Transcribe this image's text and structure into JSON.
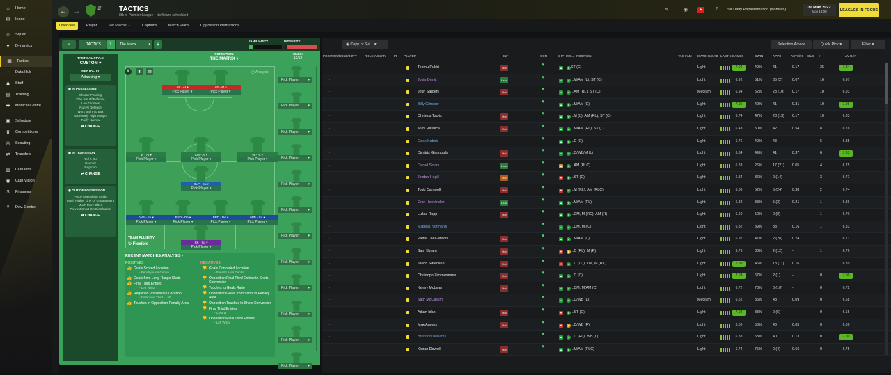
{
  "sidebar": {
    "items": [
      {
        "label": "Home",
        "icon": "home-icon",
        "glyph": "⌂"
      },
      {
        "label": "Inbox",
        "icon": "inbox-icon",
        "glyph": "✉"
      },
      {
        "label": "Squad",
        "icon": "squad-icon",
        "glyph": "☺"
      },
      {
        "label": "Dynamics",
        "icon": "dynamics-icon",
        "glyph": "♥"
      },
      {
        "label": "Tactics",
        "icon": "tactics-icon",
        "glyph": "▦",
        "active": true
      },
      {
        "label": "Data Hub",
        "icon": "data-hub-icon",
        "glyph": "◔"
      },
      {
        "label": "Staff",
        "icon": "staff-icon",
        "glyph": "♟"
      },
      {
        "label": "Training",
        "icon": "training-icon",
        "glyph": "▤"
      },
      {
        "label": "Medical Centre",
        "icon": "medical-icon",
        "glyph": "✚"
      },
      {
        "label": "Schedule",
        "icon": "schedule-icon",
        "glyph": "▣"
      },
      {
        "label": "Competitions",
        "icon": "trophy-icon",
        "glyph": "♛"
      },
      {
        "label": "Scouting",
        "icon": "scouting-icon",
        "glyph": "◎"
      },
      {
        "label": "Transfers",
        "icon": "transfers-icon",
        "glyph": "⇄"
      },
      {
        "label": "Club Info",
        "icon": "club-info-icon",
        "glyph": "▥"
      },
      {
        "label": "Club Vision",
        "icon": "club-vision-icon",
        "glyph": "◉"
      },
      {
        "label": "Finances",
        "icon": "finances-icon",
        "glyph": "$"
      },
      {
        "label": "Dev. Centre",
        "icon": "dev-centre-icon",
        "glyph": "⚘"
      }
    ]
  },
  "header": {
    "title": "TACTICS",
    "subtitle": "8th in Premier League - No fixture scheduled",
    "manager": "Sir Daffy Papastamatino (Norwich)",
    "date": "30 MAY 2022",
    "time": "Mon 12:00",
    "focus": "LEAGUES IN FOCUS"
  },
  "subtabs": [
    "Overview",
    "Player",
    "Set Pieces ⌄",
    "Captains",
    "Match Plans",
    "Opposition Instructions"
  ],
  "tactics": {
    "tab_label": "TACTICS",
    "tab_number": "1",
    "tactic_name": "The Matrix",
    "familiarity_label": "FAMILIARITY",
    "intensity_label": "INTENSITY",
    "style_label": "TACTICAL STYLE",
    "style_value": "CUSTOM",
    "mentality_label": "MENTALITY",
    "mentality_value": "Attacking",
    "in_possession_title": "IN POSSESSION",
    "in_possession": [
      "Shorter Passing",
      "Play Out Of Defence",
      "Low Crosses",
      "Run At Defence",
      "Work Ball Into Box",
      "Extremely High Tempo",
      "Fairly Narrow"
    ],
    "in_transition_title": "IN TRANSITION",
    "in_transition": [
      "Roll It Out",
      "Counter",
      "Regroup"
    ],
    "out_possession_title": "OUT OF POSSESSION",
    "out_possession": [
      "Force Opposition Inside",
      "Much Higher Line Of Engagement",
      "Much More Often",
      "Prevent Short GK Distribution"
    ],
    "change_label": "CHANGE",
    "formation_label": "FORMATION",
    "formation_value": "THE MATRIX",
    "analysis_label": "Analysis",
    "subs_label": "SUBS:",
    "subs_value": "12/12",
    "team_fluidity_label": "TEAM FLUIDITY",
    "team_fluidity_value": "Flexible"
  },
  "pitch_players": [
    {
      "role": "AF - At",
      "pick": "Pick Player"
    },
    {
      "role": "AF - At",
      "pick": "Pick Player"
    },
    {
      "role": "W - At",
      "pick": "Pick Player"
    },
    {
      "role": "CM - At",
      "pick": "Pick Player"
    },
    {
      "role": "W - At",
      "pick": "Pick Player"
    },
    {
      "role": "DLP - Su",
      "pick": "Pick Player"
    },
    {
      "role": "IWB - Su",
      "pick": "Pick Player"
    },
    {
      "role": "BPD - De",
      "pick": "Pick Player"
    },
    {
      "role": "BPD - De",
      "pick": "Pick Player"
    },
    {
      "role": "IWB - Su",
      "pick": "Pick Player"
    },
    {
      "role": "SK - Su",
      "pick": "Pick Player"
    }
  ],
  "subs_pick": "Pick Player",
  "recent": {
    "title": "RECENT MATCHES ANALYSIS ›",
    "positives_label": "POSITIVES",
    "negatives_label": "NEGATIVES",
    "positives": [
      {
        "text": "Goals Scored Location",
        "sub": "- Penalty Area Centre"
      },
      {
        "text": "Goals from Long-Range Shots",
        "sub": ""
      },
      {
        "text": "Final Third Entries",
        "sub": "- Left Wing"
      },
      {
        "text": "Regained Possession Location",
        "sub": "- Defensive Third - Left"
      },
      {
        "text": "Touches in Opposition Penalty Area",
        "sub": ""
      }
    ],
    "negatives": [
      {
        "text": "Goals Conceded Location",
        "sub": "- Penalty Area Centre"
      },
      {
        "text": "Opposition Final Third Entries to Shots Conversion",
        "sub": ""
      },
      {
        "text": "Touches to Goals Ratio",
        "sub": ""
      },
      {
        "text": "Opposition Goals from Shots in Penalty Area",
        "sub": ""
      },
      {
        "text": "Opposition Touches to Shots Conversion",
        "sub": ""
      },
      {
        "text": "Final Third Entries",
        "sub": "- Central"
      },
      {
        "text": "Opposition Final Third Entries",
        "sub": "- Left Wing"
      }
    ]
  },
  "squad_toolbar": {
    "view": "Copy of Sel...",
    "selection_advice": "Selection Advice",
    "quick_pick": "Quick Pick",
    "filter": "Filter"
  },
  "columns": [
    "POSITION/ROLE/DUTY",
    "ROLE ABILITY",
    "PI",
    "PLAYER",
    "INF",
    "CON",
    "SHP",
    "MO...",
    "POSITION",
    "TAC FAM",
    "MATCH LOAD",
    "LAST 5 GAMES",
    "GWIN",
    "APPS",
    "ASTS/90",
    "GLS",
    "▾",
    "AV RAT"
  ],
  "players": [
    {
      "name": "Teemu Pukki",
      "inf": "red",
      "shp": "up",
      "mo": "ok",
      "pos": "ST (C)",
      "load": "Light",
      "last5": "7.04",
      "gwin": "49%",
      "apps": "41",
      "asts": "0.17",
      "gls": "35",
      "avrat": "7.34",
      "color": "#e8e8e8"
    },
    {
      "name": "Josip Drmić",
      "inf": "green",
      "shp": "up",
      "mo": "ok",
      "pos": "...M/AM (L), ST (C)",
      "load": "Light",
      "last5": "6.92",
      "gwin": "51%",
      "apps": "35 (2)",
      "asts": "0.07",
      "gls": "16",
      "avrat": "6.97",
      "color": "#c690e0"
    },
    {
      "name": "Josh Sargent",
      "inf": "red",
      "shp": "up",
      "mo": "ok",
      "pos": "...AM (RL), ST (C)",
      "load": "Medium",
      "last5": "6.94",
      "gwin": "52%",
      "apps": "23 (10)",
      "asts": "0.17",
      "gls": "10",
      "avrat": "6.93",
      "color": "#e8e8e8"
    },
    {
      "name": "Billy Gilmour",
      "inf": "",
      "shp": "up",
      "mo": "ok",
      "pos": "...M/AM (C)",
      "load": "Light",
      "last5": "7.05",
      "gwin": "49%",
      "apps": "41",
      "asts": "0.31",
      "gls": "10",
      "avrat": "7.06",
      "color": "#6fa7e8"
    },
    {
      "name": "Christos Tzolis",
      "inf": "red",
      "shp": "up",
      "mo": "ok",
      "pos": "...M (L), AM (RL), ST (C)",
      "load": "Light",
      "last5": "6.74",
      "gwin": "47%",
      "apps": "23 (13)",
      "asts": "0.17",
      "gls": "10",
      "avrat": "6.83",
      "color": "#e8e8e8"
    },
    {
      "name": "Milot Rashica",
      "inf": "red",
      "shp": "up",
      "mo": "ok",
      "pos": "...M/AM (RL), ST (C)",
      "load": "Light",
      "last5": "6.48",
      "gwin": "50%",
      "apps": "42",
      "asts": "0.54",
      "gls": "8",
      "avrat": "6.76",
      "color": "#e8e8e8"
    },
    {
      "name": "Ozan Kabak",
      "inf": "",
      "shp": "up",
      "mo": "ok",
      "pos": "...D (C)",
      "load": "Light",
      "last5": "6.76",
      "gwin": "49%",
      "apps": "43",
      "asts": "-",
      "gls": "6",
      "avrat": "6.85",
      "color": "#6fa7e8"
    },
    {
      "name": "Dimitris Giannoulis",
      "inf": "red",
      "shp": "up",
      "mo": "ok",
      "pos": "...D/WB/M (L)",
      "load": "Light",
      "last5": "6.64",
      "gwin": "49%",
      "apps": "41",
      "asts": "0.37",
      "gls": "6",
      "avrat": "7.03",
      "color": "#e8e8e8"
    },
    {
      "name": "Daniel Sinani",
      "inf": "green",
      "shp": "mid",
      "mo": "ok",
      "pos": "...AM (RLC)",
      "load": "Light",
      "last5": "6.88",
      "gwin": "26%",
      "apps": "17 (21)",
      "asts": "0.05",
      "gls": "4",
      "avrat": "6.75",
      "color": "#c690e0"
    },
    {
      "name": "Jordan Hugill",
      "inf": "orange",
      "shp": "down",
      "mo": "ok",
      "pos": "...ST (C)",
      "load": "Light",
      "last5": "6.84",
      "gwin": "36%",
      "apps": "0 (14)",
      "asts": "-",
      "gls": "3",
      "avrat": "6.71",
      "color": "#c690e0"
    },
    {
      "name": "Todd Cantwell",
      "inf": "red",
      "shp": "down",
      "mo": "ok",
      "pos": "...M (RL), AM (RLC)",
      "load": "Light",
      "last5": "6.88",
      "gwin": "52%",
      "apps": "5 (24)",
      "asts": "0.38",
      "gls": "2",
      "avrat": "6.74",
      "color": "#e8e8e8"
    },
    {
      "name": "Onel Hernández",
      "inf": "green",
      "shp": "up",
      "mo": "ok",
      "pos": "...M/AM (RL)",
      "load": "Light",
      "last5": "6.82",
      "gwin": "38%",
      "apps": "5 (3)",
      "asts": "0.21",
      "gls": "1",
      "avrat": "6.86",
      "color": "#c690e0"
    },
    {
      "name": "Lukas Rupp",
      "inf": "red",
      "shp": "up",
      "mo": "ok",
      "pos": "...DM, M (RC), AM (R)",
      "load": "Light",
      "last5": "6.60",
      "gwin": "50%",
      "apps": "0 (8)",
      "asts": "-",
      "gls": "1",
      "avrat": "6.70",
      "color": "#e8e8e8"
    },
    {
      "name": "Mathias Normann",
      "inf": "",
      "shp": "up",
      "mo": "ok",
      "pos": "...DM, M (C)",
      "load": "Light",
      "last5": "6.82",
      "gwin": "39%",
      "apps": "33",
      "asts": "0.16",
      "gls": "1",
      "avrat": "6.83",
      "color": "#6fa7e8"
    },
    {
      "name": "Pierre Lees-Melou",
      "inf": "red",
      "shp": "up",
      "mo": "ok",
      "pos": "...M/AM (C)",
      "load": "Light",
      "last5": "6.92",
      "gwin": "47%",
      "apps": "2 (28)",
      "asts": "0.24",
      "gls": "1",
      "avrat": "6.71",
      "color": "#e8e8e8"
    },
    {
      "name": "Sam Byram",
      "inf": "red",
      "shp": "down",
      "mo": "mid",
      "pos": "...D (RL), M (R)",
      "load": "Light",
      "last5": "6.76",
      "gwin": "36%",
      "apps": "2 (12)",
      "asts": "-",
      "gls": "1",
      "avrat": "6.76",
      "color": "#e8e8e8"
    },
    {
      "name": "Jacob Sørensen",
      "inf": "red",
      "shp": "down",
      "mo": "ok",
      "pos": "...D (LC), DM, M (RC)",
      "load": "Light",
      "last5": "7.00",
      "gwin": "46%",
      "apps": "13 (11)",
      "asts": "0.16",
      "gls": "1",
      "avrat": "6.89",
      "color": "#e8e8e8"
    },
    {
      "name": "Christoph Zimmermann",
      "inf": "red",
      "shp": "up",
      "mo": "ok",
      "pos": "...D (C)",
      "load": "Light",
      "last5": "7.08",
      "gwin": "67%",
      "apps": "2 (1)",
      "asts": "-",
      "gls": "0",
      "avrat": "7.00",
      "color": "#e8e8e8"
    },
    {
      "name": "Kenny McLean",
      "inf": "red",
      "shp": "up",
      "mo": "ok",
      "pos": "...DM, M/AM (C)",
      "load": "Light",
      "last5": "6.72",
      "gwin": "70%",
      "apps": "0 (10)",
      "asts": "-",
      "gls": "0",
      "avrat": "6.72",
      "color": "#e8e8e8"
    },
    {
      "name": "Sam McCallum",
      "inf": "",
      "shp": "up",
      "mo": "ok",
      "pos": "...D/WB (L)",
      "load": "Medium",
      "last5": "6.52",
      "gwin": "35%",
      "apps": "48",
      "asts": "0.09",
      "gls": "0",
      "avrat": "6.68",
      "color": "#c690e0"
    },
    {
      "name": "Adam Idah",
      "inf": "red",
      "shp": "down",
      "mo": "ok",
      "pos": "...ST (C)",
      "load": "Light",
      "last5": "7.04",
      "gwin": "33%",
      "apps": "0 (6)",
      "asts": "-",
      "gls": "0",
      "avrat": "6.65",
      "color": "#e8e8e8"
    },
    {
      "name": "Max Aarons",
      "inf": "red",
      "shp": "down",
      "mo": "mid",
      "pos": "...D/WB (R)",
      "load": "Light",
      "last5": "6.50",
      "gwin": "50%",
      "apps": "40",
      "asts": "0.05",
      "gls": "0",
      "avrat": "6.66",
      "color": "#e8e8e8"
    },
    {
      "name": "Brandon Williams",
      "inf": "",
      "shp": "up",
      "mo": "ok",
      "pos": "...D (RL), WB (L)",
      "load": "Light",
      "last5": "6.88",
      "gwin": "53%",
      "apps": "40",
      "asts": "0.13",
      "gls": "0",
      "avrat": "7.00",
      "color": "#6fa7e8"
    },
    {
      "name": "Kieran Dowell",
      "inf": "red",
      "shp": "up",
      "mo": "ok",
      "pos": "...M/AM (RLC)",
      "load": "Light",
      "last5": "6.74",
      "gwin": "75%",
      "apps": "0 (4)",
      "asts": "0.66",
      "gls": "0",
      "avrat": "6.75",
      "color": "#e8e8e8"
    }
  ]
}
